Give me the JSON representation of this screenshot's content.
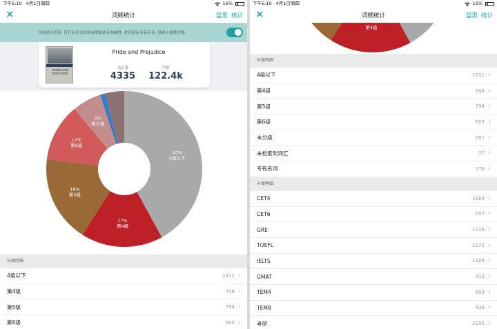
{
  "status_bar": {
    "time": "下午6:10",
    "date": "4月1日周四",
    "battery": "16%"
  },
  "nav": {
    "title": "词频统计",
    "actions": [
      "篮思",
      "统计"
    ]
  },
  "banner": {
    "text": "开启语义识别: 打开此开关后将会提高统计准确性, 并识别出专有名词, 但统计速度较慢。",
    "toggle_on": true
  },
  "book": {
    "title": "Pride and Prejudice",
    "cover_text": "PRIDE AND PREJUDICE",
    "vocab_label": "词汇量",
    "vocab_value": "4335",
    "words_label": "字数",
    "words_value": "122.4k"
  },
  "chart_data": {
    "type": "pie",
    "slices": [
      {
        "label": "4级以下",
        "percent": 42,
        "color": "#a9a9a9"
      },
      {
        "label": "第4级",
        "percent": 17,
        "color": "#bd2027"
      },
      {
        "label": "第5级",
        "percent": 18,
        "color": "#9b6837"
      },
      {
        "label": "第6级",
        "percent": 12,
        "color": "#d35a5a"
      },
      {
        "label": "未分级",
        "percent": 6,
        "color": "#c48d8d"
      },
      {
        "label": "",
        "percent": 1,
        "color": "#2e7dd1"
      },
      {
        "label": "",
        "percent": 4,
        "color": "#8a7272"
      }
    ],
    "value_labels": [
      "42%",
      "17%",
      "18%",
      "12%",
      "6%"
    ]
  },
  "level_section": {
    "header": "分级明细",
    "items": [
      {
        "label": "4级以下",
        "count": "1811"
      },
      {
        "label": "第4级",
        "count": "746"
      },
      {
        "label": "第5级",
        "count": "794"
      },
      {
        "label": "第6级",
        "count": "505"
      },
      {
        "label": "未分级",
        "count": "281"
      },
      {
        "label": "未检索到词汇",
        "count": "22"
      },
      {
        "label": "专有名词",
        "count": "176"
      }
    ]
  },
  "category_section": {
    "header": "分类明细",
    "items": [
      {
        "label": "CET4",
        "count": "1664"
      },
      {
        "label": "CET6",
        "count": "557"
      },
      {
        "label": "GRE",
        "count": "1016"
      },
      {
        "label": "TOEFL",
        "count": "1070"
      },
      {
        "label": "IELTS",
        "count": "1266"
      },
      {
        "label": "GMAT",
        "count": "312"
      },
      {
        "label": "TEM4",
        "count": "858"
      },
      {
        "label": "TEM8",
        "count": "438"
      },
      {
        "label": "考研",
        "count": "2155"
      }
    ]
  },
  "right_chart_visible_label": "第4级"
}
